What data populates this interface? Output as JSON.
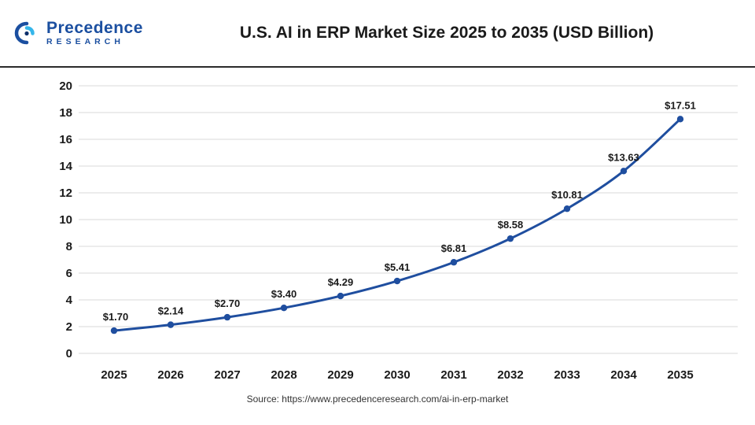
{
  "header": {
    "logo_line1": "Precedence",
    "logo_line2": "RESEARCH",
    "title": "U.S. AI in ERP Market Size 2025 to 2035 (USD Billion)"
  },
  "footer": {
    "source": "Source: https://www.precedenceresearch.com/ai-in-erp-market"
  },
  "chart_data": {
    "type": "line",
    "title": "U.S. AI in ERP Market Size 2025 to 2035 (USD Billion)",
    "categories": [
      "2025",
      "2026",
      "2027",
      "2028",
      "2029",
      "2030",
      "2031",
      "2032",
      "2033",
      "2034",
      "2035"
    ],
    "values": [
      1.7,
      2.14,
      2.7,
      3.4,
      4.29,
      5.41,
      6.81,
      8.58,
      10.81,
      13.63,
      17.51
    ],
    "point_labels": [
      "$1.70",
      "$2.14",
      "$2.70",
      "$3.40",
      "$4.29",
      "$5.41",
      "$6.81",
      "$8.58",
      "$10.81",
      "$13.63",
      "$17.51"
    ],
    "ylim": [
      0,
      20
    ],
    "ytick_step": 2,
    "yticks": [
      0,
      2,
      4,
      6,
      8,
      10,
      12,
      14,
      16,
      18,
      20
    ],
    "xlabel": "",
    "ylabel": "",
    "grid": true,
    "legend": "none",
    "line_color": "#1f4e9f",
    "grid_color": "#d9d9d9",
    "label_color": "#1a1a1a"
  }
}
